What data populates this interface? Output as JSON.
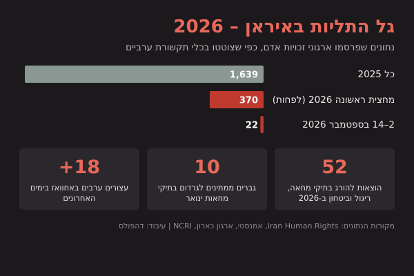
{
  "header": {
    "title": "גל התליות באיראן – 2026",
    "subtitle": "נתונים שפרסמו ארגוני זכויות אדם, כפי שצוטטו בכלי תקשורת ערביים"
  },
  "chart_data": {
    "type": "bar",
    "orientation": "horizontal",
    "categories": [
      "כל 2025",
      "מחצית ראשונה 2026 (לפחות)",
      "2–14 בספטמבר 2026"
    ],
    "values": [
      1639,
      370,
      22
    ],
    "value_labels": [
      "1,639",
      "370",
      "22"
    ],
    "colors": [
      "#8a9793",
      "#c0392f",
      "#c0392f"
    ],
    "title": "",
    "xlabel": "",
    "ylabel": ""
  },
  "stats": [
    {
      "value": "52",
      "label": "הוצאות להורג בתיקי מחאה, ריגול וביטחון ב-2026"
    },
    {
      "value": "10",
      "label": "גברים ממתינים לגרדום בתיקי מחאות ינואר"
    },
    {
      "value": "+18",
      "label": "עצורים ערבים באחוואז בימים האחרונים"
    }
  ],
  "footer": {
    "source": "מקורות הנתונים: Iran Human Rights, אמנסטי, ארגון כארון, NCRI | עיבוד: דהפולס"
  }
}
